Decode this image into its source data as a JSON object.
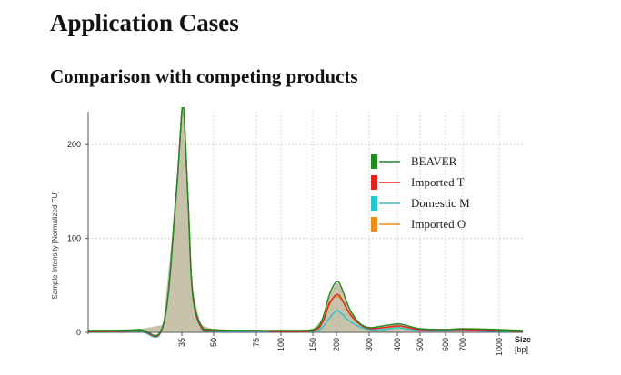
{
  "page": {
    "title": "Application Cases",
    "subtitle": "Comparison with competing products"
  },
  "chart_data": {
    "type": "line",
    "ylabel": "Sample Intensity [Normalized FU]",
    "xlabel": "Size [bp]",
    "x_axis_label_lines": [
      "Size",
      "[bp]"
    ],
    "ylim": [
      0,
      235
    ],
    "y_ticks": [
      0,
      100,
      200
    ],
    "x_ticks": [
      "35",
      "50",
      "75",
      "100",
      "150",
      "200",
      "300",
      "400",
      "500",
      "600",
      "700",
      "1000"
    ],
    "x_scale": "log-like ladder",
    "grid": true,
    "legend_position": "top-right",
    "fill_color": "#bdb99c",
    "series": [
      {
        "name": "BEAVER",
        "color": "#1f8a1f",
        "points": [
          [
            20,
            2
          ],
          [
            28,
            3
          ],
          [
            32,
            8
          ],
          [
            34,
            140
          ],
          [
            35,
            235
          ],
          [
            36,
            235
          ],
          [
            38,
            140
          ],
          [
            40,
            45
          ],
          [
            44,
            8
          ],
          [
            50,
            3
          ],
          [
            75,
            2
          ],
          [
            100,
            2
          ],
          [
            150,
            3
          ],
          [
            170,
            14
          ],
          [
            185,
            40
          ],
          [
            200,
            54
          ],
          [
            215,
            48
          ],
          [
            240,
            25
          ],
          [
            270,
            10
          ],
          [
            300,
            5
          ],
          [
            350,
            7
          ],
          [
            400,
            9
          ],
          [
            430,
            8
          ],
          [
            500,
            4
          ],
          [
            600,
            3
          ],
          [
            700,
            4
          ],
          [
            1000,
            3
          ],
          [
            1200,
            2
          ]
        ]
      },
      {
        "name": "Imported T",
        "color": "#e0241f",
        "points": [
          [
            20,
            1
          ],
          [
            28,
            2
          ],
          [
            32,
            7
          ],
          [
            34,
            138
          ],
          [
            35,
            235
          ],
          [
            36,
            235
          ],
          [
            38,
            138
          ],
          [
            40,
            42
          ],
          [
            44,
            6
          ],
          [
            50,
            2
          ],
          [
            75,
            2
          ],
          [
            100,
            1
          ],
          [
            150,
            2
          ],
          [
            170,
            10
          ],
          [
            185,
            30
          ],
          [
            200,
            40
          ],
          [
            215,
            36
          ],
          [
            240,
            20
          ],
          [
            270,
            9
          ],
          [
            300,
            4
          ],
          [
            350,
            5
          ],
          [
            400,
            7
          ],
          [
            430,
            6
          ],
          [
            500,
            3
          ],
          [
            600,
            3
          ],
          [
            700,
            3
          ],
          [
            1000,
            2
          ],
          [
            1200,
            1
          ]
        ]
      },
      {
        "name": "Domestic M",
        "color": "#2cc3d0",
        "points": [
          [
            20,
            1
          ],
          [
            28,
            1
          ],
          [
            32,
            6
          ],
          [
            34,
            135
          ],
          [
            35,
            235
          ],
          [
            36,
            235
          ],
          [
            38,
            135
          ],
          [
            40,
            40
          ],
          [
            44,
            5
          ],
          [
            50,
            1
          ],
          [
            75,
            1
          ],
          [
            100,
            1
          ],
          [
            150,
            1
          ],
          [
            170,
            5
          ],
          [
            185,
            15
          ],
          [
            200,
            23
          ],
          [
            215,
            20
          ],
          [
            240,
            12
          ],
          [
            270,
            6
          ],
          [
            300,
            3
          ],
          [
            350,
            3
          ],
          [
            400,
            5
          ],
          [
            430,
            4
          ],
          [
            500,
            2
          ],
          [
            600,
            2
          ],
          [
            700,
            2
          ],
          [
            1000,
            1
          ],
          [
            1200,
            1
          ]
        ]
      },
      {
        "name": "Imported O",
        "color": "#f08a1a",
        "points": [
          [
            20,
            2
          ],
          [
            28,
            2
          ],
          [
            32,
            7
          ],
          [
            34,
            137
          ],
          [
            35,
            235
          ],
          [
            36,
            235
          ],
          [
            38,
            137
          ],
          [
            40,
            43
          ],
          [
            44,
            7
          ],
          [
            50,
            2
          ],
          [
            75,
            2
          ],
          [
            100,
            2
          ],
          [
            150,
            3
          ],
          [
            170,
            12
          ],
          [
            185,
            32
          ],
          [
            200,
            38
          ],
          [
            215,
            35
          ],
          [
            240,
            21
          ],
          [
            270,
            9
          ],
          [
            300,
            4
          ],
          [
            350,
            5
          ],
          [
            400,
            6
          ],
          [
            430,
            6
          ],
          [
            500,
            3
          ],
          [
            600,
            3
          ],
          [
            700,
            3
          ],
          [
            1000,
            2
          ],
          [
            1200,
            2
          ]
        ]
      }
    ]
  }
}
